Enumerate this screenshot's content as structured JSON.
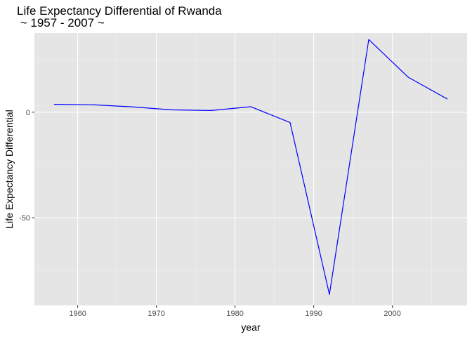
{
  "chart_data": {
    "type": "line",
    "title": "Life Expectancy Differential of Rwanda",
    "subtitle": " ~ 1957 - 2007 ~",
    "xlabel": "year",
    "ylabel": "Life Expectancy Differential",
    "xlim": [
      1954.5,
      2009.5
    ],
    "ylim": [
      -91.5,
      37.5
    ],
    "x_ticks": [
      1960,
      1970,
      1980,
      1990,
      2000
    ],
    "y_ticks": [
      0,
      -50
    ],
    "grid": true,
    "series": [
      {
        "color": "#0000ff",
        "x": [
          1957,
          1962,
          1967,
          1972,
          1977,
          1982,
          1987,
          1992,
          1997,
          2002,
          2007
        ],
        "y": [
          3.7,
          3.5,
          2.5,
          1.1,
          0.8,
          2.6,
          -4.9,
          -86.3,
          34.4,
          16.6,
          6.2
        ]
      }
    ]
  }
}
